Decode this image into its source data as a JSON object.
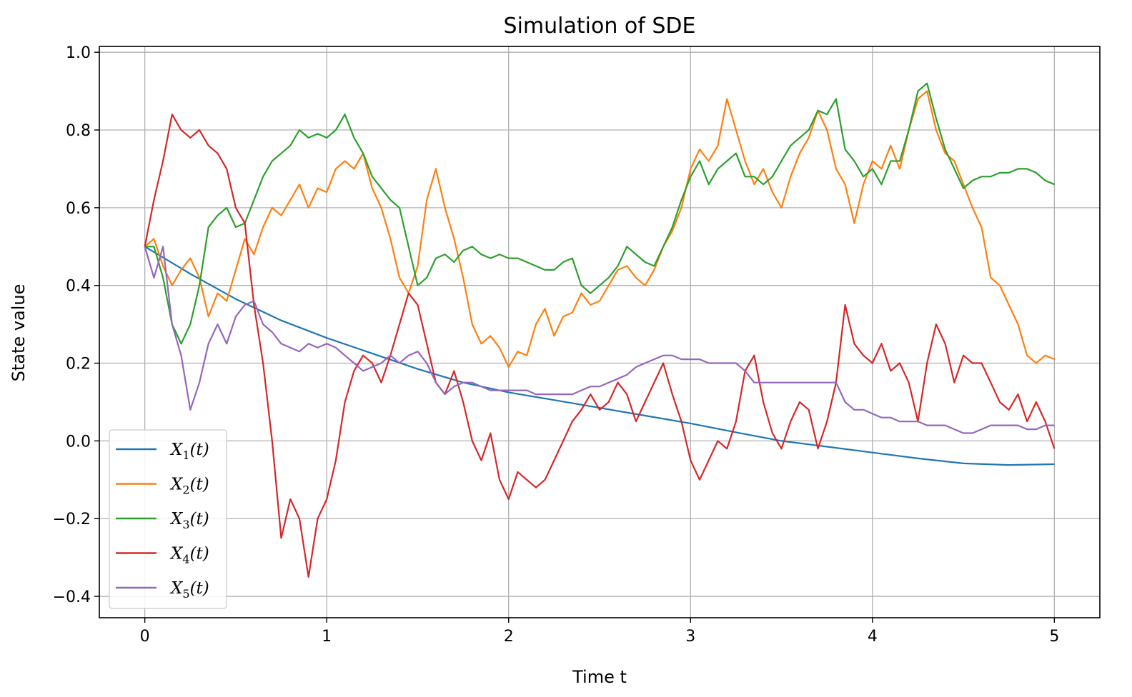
{
  "chart_data": {
    "type": "line",
    "title": "Simulation of SDE",
    "xlabel": "Time t",
    "ylabel": "State value",
    "xlim": [
      -0.25,
      5.25
    ],
    "ylim": [
      -0.455,
      1.015
    ],
    "xticks": [
      0,
      1,
      2,
      3,
      4,
      5
    ],
    "xtick_labels": [
      "0",
      "1",
      "2",
      "3",
      "4",
      "5"
    ],
    "yticks": [
      -0.4,
      -0.2,
      0.0,
      0.2,
      0.4,
      0.6,
      0.8,
      1.0
    ],
    "ytick_labels": [
      "−0.4",
      "−0.2",
      "0.0",
      "0.2",
      "0.4",
      "0.6",
      "0.8",
      "1.0"
    ],
    "grid": true,
    "legend_position": "lower-left",
    "series": [
      {
        "name": "X1(t)",
        "label_base": "X",
        "label_sub": "1",
        "label_tail": "(t)",
        "color": "#1f77b4",
        "x": [
          0,
          0.25,
          0.5,
          0.75,
          1.0,
          1.25,
          1.5,
          1.75,
          2.0,
          2.25,
          2.5,
          2.75,
          3.0,
          3.25,
          3.5,
          3.75,
          4.0,
          4.25,
          4.5,
          4.75,
          5.0
        ],
        "y": [
          0.5,
          0.43,
          0.365,
          0.31,
          0.265,
          0.225,
          0.185,
          0.15,
          0.125,
          0.105,
          0.085,
          0.065,
          0.045,
          0.022,
          0.0,
          -0.015,
          -0.03,
          -0.045,
          -0.058,
          -0.062,
          -0.06
        ]
      },
      {
        "name": "X2(t)",
        "label_base": "X",
        "label_sub": "2",
        "label_tail": "(t)",
        "color": "#ff7f0e",
        "x": [
          0,
          0.05,
          0.1,
          0.15,
          0.2,
          0.25,
          0.3,
          0.35,
          0.4,
          0.45,
          0.5,
          0.55,
          0.6,
          0.65,
          0.7,
          0.75,
          0.8,
          0.85,
          0.9,
          0.95,
          1.0,
          1.05,
          1.1,
          1.15,
          1.2,
          1.25,
          1.3,
          1.35,
          1.4,
          1.45,
          1.5,
          1.55,
          1.6,
          1.65,
          1.7,
          1.75,
          1.8,
          1.85,
          1.9,
          1.95,
          2.0,
          2.05,
          2.1,
          2.15,
          2.2,
          2.25,
          2.3,
          2.35,
          2.4,
          2.45,
          2.5,
          2.55,
          2.6,
          2.65,
          2.7,
          2.75,
          2.8,
          2.85,
          2.9,
          2.95,
          3.0,
          3.05,
          3.1,
          3.15,
          3.2,
          3.25,
          3.3,
          3.35,
          3.4,
          3.45,
          3.5,
          3.55,
          3.6,
          3.65,
          3.7,
          3.75,
          3.8,
          3.85,
          3.9,
          3.95,
          4.0,
          4.05,
          4.1,
          4.15,
          4.2,
          4.25,
          4.3,
          4.35,
          4.4,
          4.45,
          4.5,
          4.55,
          4.6,
          4.65,
          4.7,
          4.75,
          4.8,
          4.85,
          4.9,
          4.95,
          5.0
        ],
        "y": [
          0.5,
          0.52,
          0.45,
          0.4,
          0.44,
          0.47,
          0.42,
          0.32,
          0.38,
          0.36,
          0.44,
          0.52,
          0.48,
          0.55,
          0.6,
          0.58,
          0.62,
          0.66,
          0.6,
          0.65,
          0.64,
          0.7,
          0.72,
          0.7,
          0.74,
          0.65,
          0.6,
          0.52,
          0.42,
          0.38,
          0.45,
          0.62,
          0.7,
          0.6,
          0.52,
          0.42,
          0.3,
          0.25,
          0.27,
          0.24,
          0.19,
          0.23,
          0.22,
          0.3,
          0.34,
          0.27,
          0.32,
          0.33,
          0.38,
          0.35,
          0.36,
          0.4,
          0.44,
          0.45,
          0.42,
          0.4,
          0.44,
          0.5,
          0.54,
          0.6,
          0.7,
          0.75,
          0.72,
          0.76,
          0.88,
          0.8,
          0.72,
          0.66,
          0.7,
          0.64,
          0.6,
          0.68,
          0.74,
          0.78,
          0.85,
          0.8,
          0.7,
          0.66,
          0.56,
          0.66,
          0.72,
          0.7,
          0.76,
          0.7,
          0.8,
          0.88,
          0.9,
          0.8,
          0.74,
          0.72,
          0.66,
          0.6,
          0.55,
          0.42,
          0.4,
          0.35,
          0.3,
          0.22,
          0.2,
          0.22,
          0.21
        ]
      },
      {
        "name": "X3(t)",
        "label_base": "X",
        "label_sub": "3",
        "label_tail": "(t)",
        "color": "#2ca02c",
        "x": [
          0,
          0.05,
          0.1,
          0.15,
          0.2,
          0.25,
          0.3,
          0.35,
          0.4,
          0.45,
          0.5,
          0.55,
          0.6,
          0.65,
          0.7,
          0.75,
          0.8,
          0.85,
          0.9,
          0.95,
          1.0,
          1.05,
          1.1,
          1.15,
          1.2,
          1.25,
          1.3,
          1.35,
          1.4,
          1.45,
          1.5,
          1.55,
          1.6,
          1.65,
          1.7,
          1.75,
          1.8,
          1.85,
          1.9,
          1.95,
          2.0,
          2.05,
          2.1,
          2.15,
          2.2,
          2.25,
          2.3,
          2.35,
          2.4,
          2.45,
          2.5,
          2.55,
          2.6,
          2.65,
          2.7,
          2.75,
          2.8,
          2.85,
          2.9,
          2.95,
          3.0,
          3.05,
          3.1,
          3.15,
          3.2,
          3.25,
          3.3,
          3.35,
          3.4,
          3.45,
          3.5,
          3.55,
          3.6,
          3.65,
          3.7,
          3.75,
          3.8,
          3.85,
          3.9,
          3.95,
          4.0,
          4.05,
          4.1,
          4.15,
          4.2,
          4.25,
          4.3,
          4.35,
          4.4,
          4.45,
          4.5,
          4.55,
          4.6,
          4.65,
          4.7,
          4.75,
          4.8,
          4.85,
          4.9,
          4.95,
          5.0
        ],
        "y": [
          0.5,
          0.5,
          0.42,
          0.3,
          0.25,
          0.3,
          0.4,
          0.55,
          0.58,
          0.6,
          0.55,
          0.56,
          0.62,
          0.68,
          0.72,
          0.74,
          0.76,
          0.8,
          0.78,
          0.79,
          0.78,
          0.8,
          0.84,
          0.78,
          0.74,
          0.68,
          0.65,
          0.62,
          0.6,
          0.5,
          0.4,
          0.42,
          0.47,
          0.48,
          0.46,
          0.49,
          0.5,
          0.48,
          0.47,
          0.48,
          0.47,
          0.47,
          0.46,
          0.45,
          0.44,
          0.44,
          0.46,
          0.47,
          0.4,
          0.38,
          0.4,
          0.42,
          0.45,
          0.5,
          0.48,
          0.46,
          0.45,
          0.5,
          0.55,
          0.62,
          0.68,
          0.72,
          0.66,
          0.7,
          0.72,
          0.74,
          0.68,
          0.68,
          0.66,
          0.68,
          0.72,
          0.76,
          0.78,
          0.8,
          0.85,
          0.84,
          0.88,
          0.75,
          0.72,
          0.68,
          0.7,
          0.66,
          0.72,
          0.72,
          0.8,
          0.9,
          0.92,
          0.83,
          0.75,
          0.7,
          0.65,
          0.67,
          0.68,
          0.68,
          0.69,
          0.69,
          0.7,
          0.7,
          0.69,
          0.67,
          0.66
        ]
      },
      {
        "name": "X4(t)",
        "label_base": "X",
        "label_sub": "4",
        "label_tail": "(t)",
        "color": "#d62728",
        "x": [
          0,
          0.05,
          0.1,
          0.15,
          0.2,
          0.25,
          0.3,
          0.35,
          0.4,
          0.45,
          0.5,
          0.55,
          0.6,
          0.65,
          0.7,
          0.75,
          0.8,
          0.85,
          0.9,
          0.95,
          1.0,
          1.05,
          1.1,
          1.15,
          1.2,
          1.25,
          1.3,
          1.35,
          1.4,
          1.45,
          1.5,
          1.55,
          1.6,
          1.65,
          1.7,
          1.75,
          1.8,
          1.85,
          1.9,
          1.95,
          2.0,
          2.05,
          2.1,
          2.15,
          2.2,
          2.25,
          2.3,
          2.35,
          2.4,
          2.45,
          2.5,
          2.55,
          2.6,
          2.65,
          2.7,
          2.75,
          2.8,
          2.85,
          2.9,
          2.95,
          3.0,
          3.05,
          3.1,
          3.15,
          3.2,
          3.25,
          3.3,
          3.35,
          3.4,
          3.45,
          3.5,
          3.55,
          3.6,
          3.65,
          3.7,
          3.75,
          3.8,
          3.85,
          3.9,
          3.95,
          4.0,
          4.05,
          4.1,
          4.15,
          4.2,
          4.25,
          4.3,
          4.35,
          4.4,
          4.45,
          4.5,
          4.55,
          4.6,
          4.65,
          4.7,
          4.75,
          4.8,
          4.85,
          4.9,
          4.95,
          5.0
        ],
        "y": [
          0.5,
          0.62,
          0.72,
          0.84,
          0.8,
          0.78,
          0.8,
          0.76,
          0.74,
          0.7,
          0.6,
          0.56,
          0.35,
          0.2,
          0.0,
          -0.25,
          -0.15,
          -0.2,
          -0.35,
          -0.2,
          -0.15,
          -0.05,
          0.1,
          0.18,
          0.22,
          0.2,
          0.15,
          0.22,
          0.3,
          0.38,
          0.35,
          0.25,
          0.15,
          0.12,
          0.18,
          0.1,
          0.0,
          -0.05,
          0.02,
          -0.1,
          -0.15,
          -0.08,
          -0.1,
          -0.12,
          -0.1,
          -0.05,
          0.0,
          0.05,
          0.08,
          0.12,
          0.08,
          0.1,
          0.15,
          0.12,
          0.05,
          0.1,
          0.15,
          0.2,
          0.12,
          0.05,
          -0.05,
          -0.1,
          -0.05,
          0.0,
          -0.02,
          0.05,
          0.18,
          0.22,
          0.1,
          0.02,
          -0.02,
          0.05,
          0.1,
          0.08,
          -0.02,
          0.05,
          0.15,
          0.35,
          0.25,
          0.22,
          0.2,
          0.25,
          0.18,
          0.2,
          0.15,
          0.05,
          0.2,
          0.3,
          0.25,
          0.15,
          0.22,
          0.2,
          0.2,
          0.15,
          0.1,
          0.08,
          0.12,
          0.05,
          0.1,
          0.05,
          -0.02
        ]
      },
      {
        "name": "X5(t)",
        "label_base": "X",
        "label_sub": "5",
        "label_tail": "(t)",
        "color": "#9467bd",
        "x": [
          0,
          0.05,
          0.1,
          0.15,
          0.2,
          0.25,
          0.3,
          0.35,
          0.4,
          0.45,
          0.5,
          0.55,
          0.6,
          0.65,
          0.7,
          0.75,
          0.8,
          0.85,
          0.9,
          0.95,
          1.0,
          1.05,
          1.1,
          1.15,
          1.2,
          1.25,
          1.3,
          1.35,
          1.4,
          1.45,
          1.5,
          1.55,
          1.6,
          1.65,
          1.7,
          1.75,
          1.8,
          1.85,
          1.9,
          1.95,
          2.0,
          2.05,
          2.1,
          2.15,
          2.2,
          2.25,
          2.3,
          2.35,
          2.4,
          2.45,
          2.5,
          2.55,
          2.6,
          2.65,
          2.7,
          2.75,
          2.8,
          2.85,
          2.9,
          2.95,
          3.0,
          3.05,
          3.1,
          3.15,
          3.2,
          3.25,
          3.3,
          3.35,
          3.4,
          3.45,
          3.5,
          3.55,
          3.6,
          3.65,
          3.7,
          3.75,
          3.8,
          3.85,
          3.9,
          3.95,
          4.0,
          4.05,
          4.1,
          4.15,
          4.2,
          4.25,
          4.3,
          4.35,
          4.4,
          4.45,
          4.5,
          4.55,
          4.6,
          4.65,
          4.7,
          4.75,
          4.8,
          4.85,
          4.9,
          4.95,
          5.0
        ],
        "y": [
          0.5,
          0.42,
          0.5,
          0.3,
          0.22,
          0.08,
          0.15,
          0.25,
          0.3,
          0.25,
          0.32,
          0.35,
          0.36,
          0.3,
          0.28,
          0.25,
          0.24,
          0.23,
          0.25,
          0.24,
          0.25,
          0.24,
          0.22,
          0.2,
          0.18,
          0.19,
          0.2,
          0.22,
          0.2,
          0.22,
          0.23,
          0.2,
          0.15,
          0.12,
          0.14,
          0.15,
          0.15,
          0.14,
          0.13,
          0.13,
          0.13,
          0.13,
          0.13,
          0.12,
          0.12,
          0.12,
          0.12,
          0.12,
          0.13,
          0.14,
          0.14,
          0.15,
          0.16,
          0.17,
          0.19,
          0.2,
          0.21,
          0.22,
          0.22,
          0.21,
          0.21,
          0.21,
          0.2,
          0.2,
          0.2,
          0.2,
          0.18,
          0.15,
          0.15,
          0.15,
          0.15,
          0.15,
          0.15,
          0.15,
          0.15,
          0.15,
          0.15,
          0.1,
          0.08,
          0.08,
          0.07,
          0.06,
          0.06,
          0.05,
          0.05,
          0.05,
          0.04,
          0.04,
          0.04,
          0.03,
          0.02,
          0.02,
          0.03,
          0.04,
          0.04,
          0.04,
          0.04,
          0.03,
          0.03,
          0.04,
          0.04
        ]
      }
    ]
  }
}
